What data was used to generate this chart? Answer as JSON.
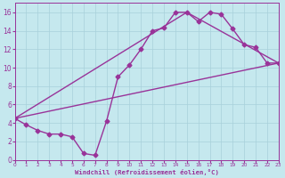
{
  "xlabel": "Windchill (Refroidissement éolien,°C)",
  "bg_color": "#c5e8ee",
  "grid_color": "#a8d0da",
  "line_color": "#993399",
  "xlim": [
    0,
    23
  ],
  "ylim": [
    0,
    17
  ],
  "xticks": [
    0,
    1,
    2,
    3,
    4,
    5,
    6,
    7,
    8,
    9,
    10,
    11,
    12,
    13,
    14,
    15,
    16,
    17,
    18,
    19,
    20,
    21,
    22,
    23
  ],
  "yticks": [
    0,
    2,
    4,
    6,
    8,
    10,
    12,
    14,
    16
  ],
  "line1_x": [
    0,
    1,
    2,
    3,
    4,
    5,
    6,
    7,
    8,
    9,
    10,
    11,
    12,
    13,
    14,
    15,
    16,
    17,
    18,
    19,
    20,
    21,
    22,
    23
  ],
  "line1_y": [
    4.5,
    3.8,
    3.2,
    2.8,
    2.8,
    2.5,
    0.7,
    0.5,
    4.2,
    9.0,
    10.3,
    12.0,
    14.0,
    14.3,
    16.0,
    16.0,
    15.0,
    16.0,
    15.8,
    14.2,
    12.5,
    12.2,
    10.5,
    10.5
  ],
  "line2_x": [
    0,
    23
  ],
  "line2_y": [
    4.5,
    10.5
  ],
  "line3_x": [
    0,
    15,
    23
  ],
  "line3_y": [
    4.5,
    16.0,
    10.5
  ],
  "marker": "D",
  "markersize": 2.5,
  "linewidth": 1.0
}
